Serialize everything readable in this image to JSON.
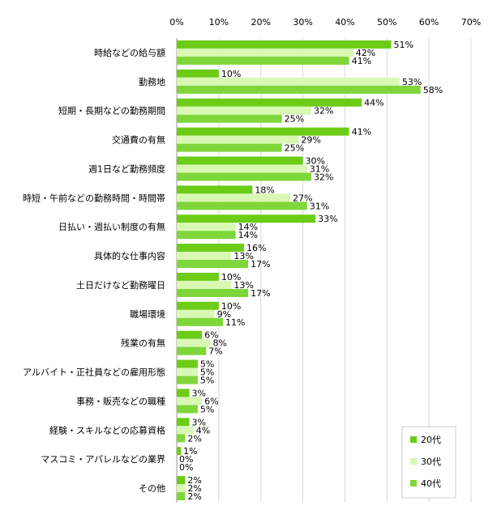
{
  "chart_data": {
    "type": "bar",
    "orientation": "horizontal",
    "title": "",
    "xlabel": "",
    "ylabel": "",
    "xlim": [
      0,
      70
    ],
    "x_ticks": [
      "0%",
      "10%",
      "20%",
      "30%",
      "40%",
      "50%",
      "60%",
      "70%"
    ],
    "value_suffix": "%",
    "grid": true,
    "legend_position": "bottom-right",
    "categories": [
      "時給などの給与額",
      "勤務地",
      "短期・長期などの勤務期間",
      "交通費の有無",
      "週1日など勤務頻度",
      "時短・午前などの勤務時間・時間帯",
      "日払い・週払い制度の有無",
      "具体的な仕事内容",
      "土日だけなど勤務曜日",
      "職場環境",
      "残業の有無",
      "アルバイト・正社員などの雇用形態",
      "事務・販売などの職種",
      "経験・スキルなどの応募資格",
      "マスコミ・アパレルなどの業界",
      "その他"
    ],
    "series": [
      {
        "name": "20代",
        "color": "#6ccc16",
        "values": [
          51,
          10,
          44,
          41,
          30,
          18,
          33,
          16,
          10,
          10,
          6,
          5,
          3,
          3,
          1,
          2
        ]
      },
      {
        "name": "30代",
        "color": "#d8f8b4",
        "values": [
          42,
          53,
          32,
          29,
          31,
          27,
          14,
          13,
          13,
          9,
          8,
          5,
          6,
          4,
          0,
          2
        ]
      },
      {
        "name": "40代",
        "color": "#7fd63a",
        "values": [
          41,
          58,
          25,
          25,
          32,
          31,
          14,
          17,
          17,
          11,
          7,
          5,
          5,
          2,
          0,
          2
        ]
      }
    ]
  }
}
